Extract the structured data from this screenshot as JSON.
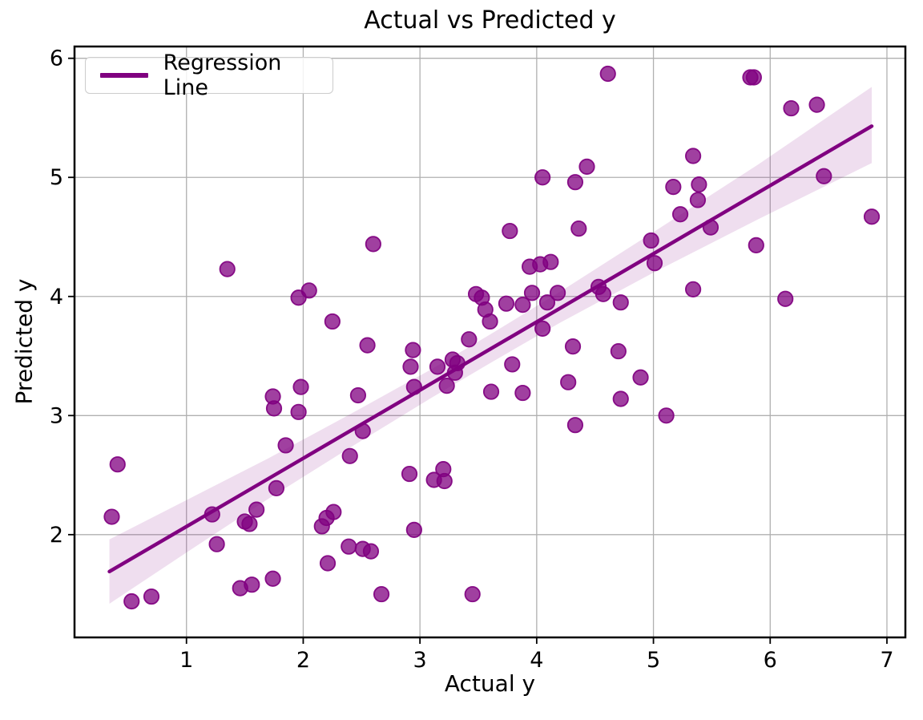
{
  "chart_data": {
    "type": "scatter",
    "title": "Actual vs Predicted y",
    "xlabel": "Actual y",
    "ylabel": "Predicted y",
    "xlim": [
      0.041,
      7.158
    ],
    "ylim": [
      1.137,
      6.099
    ],
    "xticks": [
      1,
      2,
      3,
      4,
      5,
      6,
      7
    ],
    "yticks": [
      2,
      3,
      4,
      5,
      6
    ],
    "grid": true,
    "legend": {
      "position": "upper left",
      "entries": [
        "Regression Line"
      ]
    },
    "colors": {
      "scatter": "#800080",
      "scatter_fill_opacity": 0.75,
      "scatter_edge_opacity": 0.92,
      "regression_line": "#800080",
      "confidence_band": "#800080",
      "confidence_band_opacity": 0.13,
      "grid_color": "#b0b0b0",
      "frame_color": "#000000"
    },
    "series": [
      {
        "name": "actual-vs-predicted-points",
        "type": "scatter",
        "points": [
          [
            1.35,
            4.23
          ],
          [
            1.96,
            3.99
          ],
          [
            2.05,
            4.05
          ],
          [
            2.25,
            3.79
          ],
          [
            4.61,
            5.87
          ],
          [
            4.05,
            5.0
          ],
          [
            4.33,
            4.96
          ],
          [
            4.43,
            5.09
          ],
          [
            3.77,
            4.55
          ],
          [
            2.6,
            4.44
          ],
          [
            4.36,
            4.57
          ],
          [
            3.94,
            4.25
          ],
          [
            4.03,
            4.27
          ],
          [
            4.12,
            4.29
          ],
          [
            3.48,
            4.02
          ],
          [
            3.53,
            3.99
          ],
          [
            3.56,
            3.89
          ],
          [
            3.6,
            3.79
          ],
          [
            3.74,
            3.94
          ],
          [
            3.88,
            3.93
          ],
          [
            3.96,
            4.03
          ],
          [
            4.09,
            3.95
          ],
          [
            4.18,
            4.03
          ],
          [
            4.53,
            4.08
          ],
          [
            4.57,
            4.02
          ],
          [
            4.72,
            3.95
          ],
          [
            4.05,
            3.73
          ],
          [
            4.31,
            3.58
          ],
          [
            4.7,
            3.54
          ],
          [
            3.42,
            3.64
          ],
          [
            5.83,
            5.84
          ],
          [
            5.86,
            5.84
          ],
          [
            6.18,
            5.58
          ],
          [
            6.4,
            5.61
          ],
          [
            5.34,
            5.18
          ],
          [
            6.46,
            5.01
          ],
          [
            5.17,
            4.92
          ],
          [
            5.39,
            4.94
          ],
          [
            5.38,
            4.81
          ],
          [
            5.23,
            4.69
          ],
          [
            5.49,
            4.58
          ],
          [
            4.98,
            4.47
          ],
          [
            5.01,
            4.28
          ],
          [
            5.88,
            4.43
          ],
          [
            6.87,
            4.67
          ],
          [
            5.34,
            4.06
          ],
          [
            6.13,
            3.98
          ],
          [
            1.74,
            3.16
          ],
          [
            1.75,
            3.06
          ],
          [
            1.98,
            3.24
          ],
          [
            1.96,
            3.03
          ],
          [
            0.41,
            2.59
          ],
          [
            1.85,
            2.75
          ],
          [
            1.77,
            2.39
          ],
          [
            0.36,
            2.15
          ],
          [
            1.22,
            2.17
          ],
          [
            1.6,
            2.21
          ],
          [
            1.5,
            2.11
          ],
          [
            1.54,
            2.09
          ],
          [
            1.26,
            1.92
          ],
          [
            1.46,
            1.55
          ],
          [
            1.56,
            1.58
          ],
          [
            1.74,
            1.63
          ],
          [
            0.53,
            1.44
          ],
          [
            0.7,
            1.48
          ],
          [
            2.26,
            2.19
          ],
          [
            2.2,
            2.14
          ],
          [
            2.16,
            2.07
          ],
          [
            2.21,
            1.76
          ],
          [
            2.39,
            1.9
          ],
          [
            2.51,
            1.88
          ],
          [
            2.58,
            1.86
          ],
          [
            2.55,
            3.59
          ],
          [
            2.94,
            3.55
          ],
          [
            2.92,
            3.41
          ],
          [
            3.15,
            3.41
          ],
          [
            3.28,
            3.47
          ],
          [
            3.32,
            3.44
          ],
          [
            3.3,
            3.36
          ],
          [
            2.95,
            3.24
          ],
          [
            3.23,
            3.25
          ],
          [
            3.61,
            3.2
          ],
          [
            3.79,
            3.43
          ],
          [
            3.88,
            3.19
          ],
          [
            4.27,
            3.28
          ],
          [
            4.33,
            2.92
          ],
          [
            2.47,
            3.17
          ],
          [
            2.51,
            2.87
          ],
          [
            2.4,
            2.66
          ],
          [
            2.91,
            2.51
          ],
          [
            3.2,
            2.55
          ],
          [
            3.12,
            2.46
          ],
          [
            3.21,
            2.45
          ],
          [
            2.95,
            2.04
          ],
          [
            2.67,
            1.5
          ],
          [
            3.45,
            1.5
          ],
          [
            4.89,
            3.32
          ],
          [
            4.72,
            3.14
          ],
          [
            5.11,
            3.0
          ]
        ]
      },
      {
        "name": "Regression Line",
        "type": "line",
        "x": [
          0.34,
          6.87
        ],
        "y": [
          1.69,
          5.43
        ]
      },
      {
        "name": "confidence-band",
        "type": "area",
        "x": [
          0.34,
          1.0,
          1.7,
          2.4,
          3.1,
          3.6,
          4.2,
          5.0,
          5.9,
          6.87
        ],
        "upper": [
          1.96,
          2.29,
          2.64,
          3.01,
          3.39,
          3.68,
          4.04,
          4.54,
          5.11,
          5.76
        ],
        "lower": [
          1.42,
          1.85,
          2.3,
          2.73,
          3.15,
          3.44,
          3.78,
          4.2,
          4.65,
          5.12
        ]
      }
    ]
  }
}
